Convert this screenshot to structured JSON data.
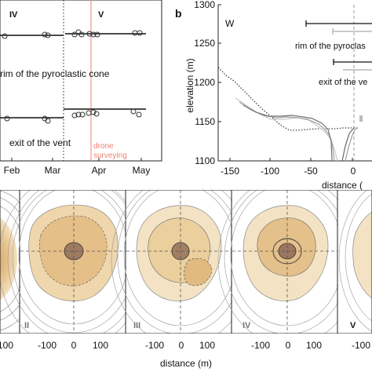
{
  "panel_a": {
    "phase_labels": [
      "IV",
      "V"
    ],
    "series_labels": [
      "rim of the pyroclastic cone",
      "exit of the vent"
    ],
    "x_ticks": [
      "Feb",
      "Mar",
      "Apr",
      "May"
    ],
    "annotation": [
      "drone",
      "surveying"
    ],
    "colors": {
      "annotation": "#f08070",
      "marker": "#333333",
      "line": "#111111"
    }
  },
  "panel_b": {
    "label": "b",
    "corner_label": "W",
    "ylabel": "elevation (m)",
    "xlabel": "distance (",
    "y_ticks": [
      "1300",
      "1250",
      "1200",
      "1150",
      "1100"
    ],
    "x_ticks": [
      "-150",
      "-100",
      "-50",
      "0"
    ],
    "annotations": [
      "rim of the pyroclas",
      "exit of the ve"
    ]
  },
  "panel_c": {
    "xlabel": "distance (m)",
    "x_ticks": [
      "-100",
      "0",
      "100",
      "-100",
      "0",
      "100",
      "-100",
      "0",
      "100",
      "-100",
      "0",
      "100",
      "-100"
    ],
    "map_labels": [
      "II",
      "III",
      "IV",
      "V"
    ],
    "colors": {
      "fill_outer": "#f1dfbd",
      "fill_mid": "#e3c08c",
      "fill_inner": "#c9955a",
      "center": "#8c6a53"
    }
  },
  "chart_data": [
    {
      "type": "scatter",
      "title": "",
      "xlabel": "",
      "ylabel": "",
      "categories": [
        "Feb",
        "Mar",
        "Apr",
        "May"
      ],
      "series": [
        {
          "name": "rim of the pyroclastic cone",
          "values": []
        },
        {
          "name": "exit of the vent",
          "values": []
        }
      ],
      "annotations": [
        "IV",
        "V",
        "drone surveying"
      ]
    },
    {
      "type": "line",
      "title": "",
      "xlabel": "distance (",
      "ylabel": "elevation (m)",
      "xlim": [
        -175,
        20
      ],
      "ylim": [
        1100,
        1300
      ],
      "series": [
        {
          "x": [
            -175,
            -165,
            -155,
            -145,
            -135,
            -125,
            -118,
            -110,
            -100,
            -90,
            -80,
            -75,
            -70,
            -60,
            -50,
            -40,
            -30,
            -20,
            -10
          ],
          "values": [
            1219,
            1212,
            1202,
            1193,
            1182,
            1172,
            1166,
            1162,
            1160,
            1160,
            1160,
            1158,
            1161,
            1157,
            1156,
            1154,
            1152,
            1145,
            1139
          ]
        }
      ],
      "annotations": [
        "rim of the pyroclas",
        "exit of the ve",
        "W"
      ]
    }
  ]
}
